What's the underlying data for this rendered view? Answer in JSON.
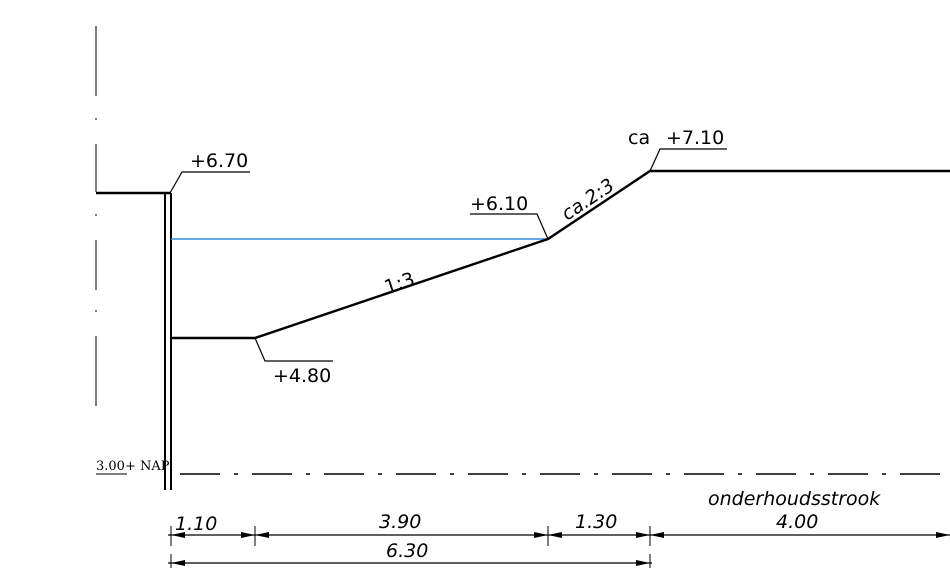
{
  "drawing": {
    "levels": {
      "top_left": "+6.70",
      "water": "+6.10",
      "top_right_prefix": "ca",
      "top_right": "+7.10",
      "bottom": "+4.80"
    },
    "slopes": {
      "lower": "1:3",
      "upper": "ca.2:3"
    },
    "reference_level": "3.00+ NAP",
    "maintenance_strip_label": "onderhoudsstrook",
    "dimensions": {
      "d1": "1.10",
      "d2": "3.90",
      "d3": "1.30",
      "d4": "4.00",
      "total": "6.30"
    },
    "colors": {
      "water_line": "#2e8fe0",
      "line": "#000000"
    }
  }
}
